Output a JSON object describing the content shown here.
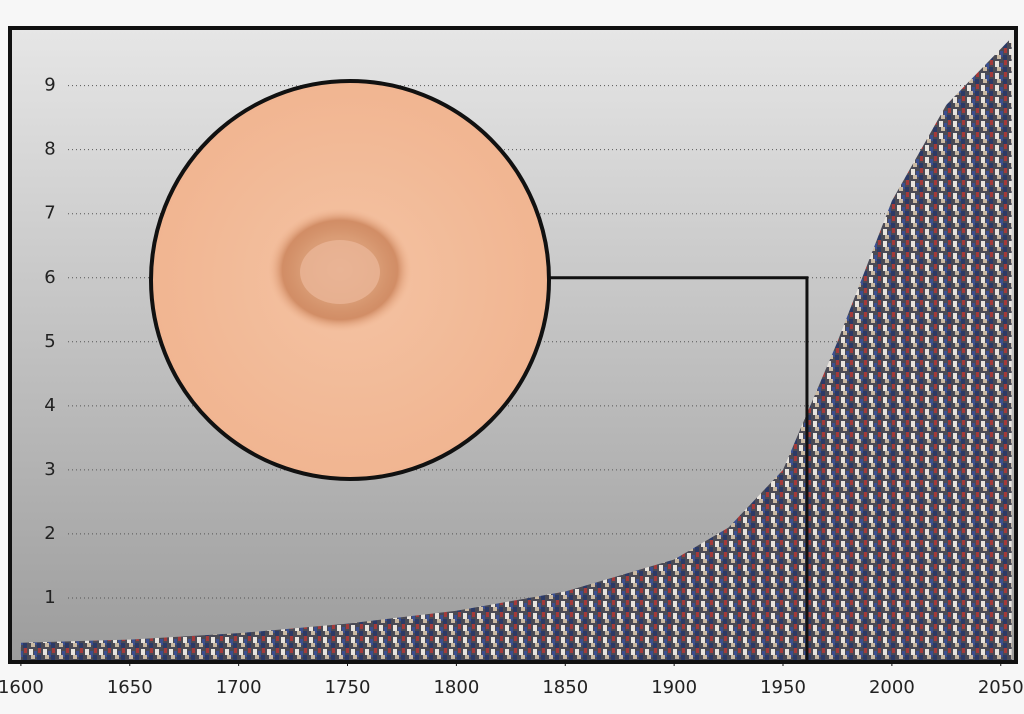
{
  "chart_data": {
    "type": "area",
    "x": [
      1600,
      1650,
      1700,
      1750,
      1800,
      1850,
      1900,
      1925,
      1950,
      1975,
      2000,
      2025,
      2055
    ],
    "values": [
      0.3,
      0.35,
      0.45,
      0.6,
      0.8,
      1.1,
      1.6,
      2.1,
      3.0,
      5.0,
      7.2,
      8.7,
      9.75
    ],
    "xlim": [
      1595,
      2057
    ],
    "ylim": [
      0,
      9.9
    ],
    "xticks": [
      1600,
      1650,
      1700,
      1750,
      1800,
      1850,
      1900,
      1950,
      2000,
      2050
    ],
    "yticks": [
      1,
      2,
      3,
      4,
      5,
      6,
      7,
      8,
      9
    ],
    "grid": true,
    "highlight": {
      "x": 1961,
      "y": 6
    }
  }
}
